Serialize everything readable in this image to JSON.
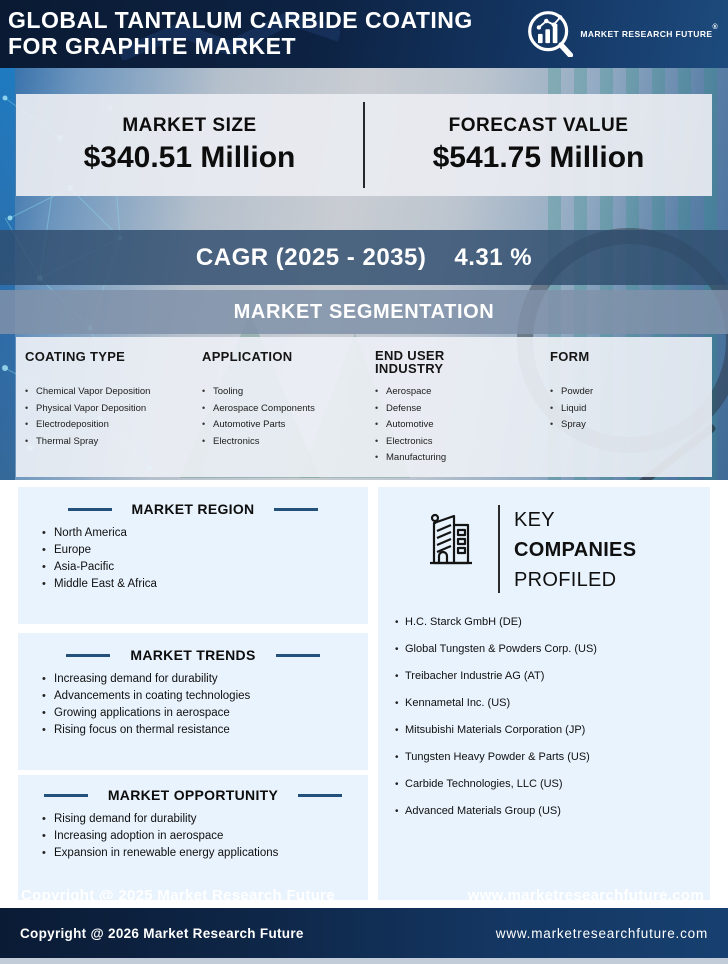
{
  "header": {
    "title_line1": "GLOBAL TANTALUM CARBIDE COATING",
    "title_line2": "FOR GRAPHITE MARKET",
    "brand": "MARKET RESEARCH FUTURE",
    "registered_mark": "®"
  },
  "stats": {
    "market_size_label": "MARKET SIZE",
    "market_size_value": "$340.51 Million",
    "forecast_label": "FORECAST VALUE",
    "forecast_value": "$541.75 Million",
    "cagr_label": "CAGR (2025 - 2035)",
    "cagr_value": "4.31 %"
  },
  "segmentation": {
    "title": "MARKET SEGMENTATION",
    "columns": [
      {
        "heading": "COATING TYPE",
        "items": [
          "Chemical Vapor Deposition",
          "Physical Vapor Deposition",
          "Electrodeposition",
          "Thermal Spray"
        ]
      },
      {
        "heading": "APPLICATION",
        "items": [
          "Tooling",
          "Aerospace Components",
          "Automotive Parts",
          "Electronics"
        ]
      },
      {
        "heading": "END USER INDUSTRY",
        "items": [
          "Aerospace",
          "Defense",
          "Automotive",
          "Electronics",
          "Manufacturing"
        ]
      },
      {
        "heading": "FORM",
        "items": [
          "Powder",
          "Liquid",
          "Spray"
        ]
      }
    ]
  },
  "region": {
    "title": "MARKET REGION",
    "items": [
      "North America",
      "Europe",
      "Asia-Pacific",
      "Middle East & Africa"
    ]
  },
  "trends": {
    "title": "MARKET TRENDS",
    "items": [
      "Increasing demand for durability",
      "Advancements in coating technologies",
      "Growing applications in aerospace",
      "Rising focus on thermal resistance"
    ]
  },
  "opportunity": {
    "title": "MARKET OPPORTUNITY",
    "items": [
      "Rising demand for durability",
      "Increasing adoption in aerospace",
      "Expansion in renewable energy applications"
    ]
  },
  "companies": {
    "title_line1": "KEY",
    "title_line2": "COMPANIES",
    "title_line3": "PROFILED",
    "items": [
      "H.C. Starck GmbH (DE)",
      "Global Tungsten & Powders Corp. (US)",
      "Treibacher Industrie AG (AT)",
      "Kennametal Inc. (US)",
      "Mitsubishi Materials Corporation (JP)",
      "Tungsten Heavy Powder & Parts (US)",
      "Carbide Technologies, LLC (US)",
      "Advanced Materials Group (US)"
    ]
  },
  "watermarks": {
    "copyright": "Copyright @ 2025 Market Research Future",
    "website": "www.marketresearchfuture.com"
  },
  "footer": {
    "copyright": "Copyright @ 2026 Market Research Future",
    "website": "www.marketresearchfuture.com"
  },
  "colors": {
    "header_navy": "#0d2344",
    "accent_blue": "#24517c",
    "card_bg": "#e9f3fd",
    "cagr_band": "#2f4d6e",
    "footer_navy": "#0e2647"
  }
}
